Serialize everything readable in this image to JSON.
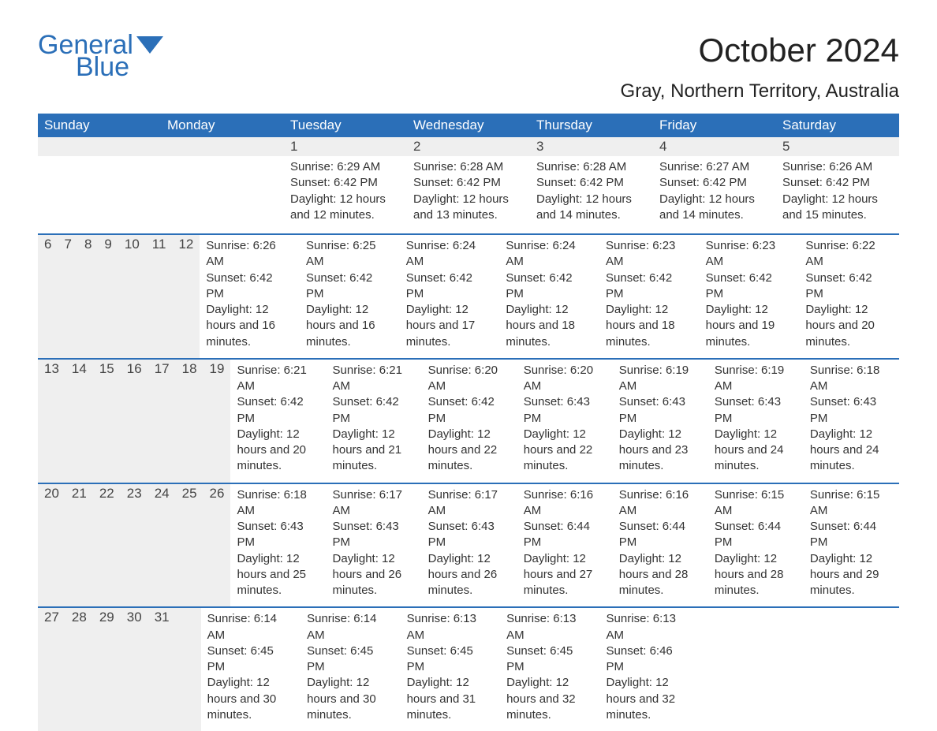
{
  "logo": {
    "general": "General",
    "blue": "Blue"
  },
  "title": "October 2024",
  "subtitle": "Gray, Northern Territory, Australia",
  "colors": {
    "header_bg": "#2b6fb8",
    "header_text": "#ffffff",
    "daynum_bg": "#efefef",
    "week_border": "#2b6fb8",
    "body_text": "#333333",
    "page_bg": "#ffffff"
  },
  "typography": {
    "title_fontsize": 42,
    "subtitle_fontsize": 24,
    "dayhead_fontsize": 17,
    "daynum_fontsize": 17,
    "body_fontsize": 15
  },
  "day_headers": [
    "Sunday",
    "Monday",
    "Tuesday",
    "Wednesday",
    "Thursday",
    "Friday",
    "Saturday"
  ],
  "weeks": [
    [
      {
        "num": "",
        "sunrise": "",
        "sunset": "",
        "daylight": ""
      },
      {
        "num": "",
        "sunrise": "",
        "sunset": "",
        "daylight": ""
      },
      {
        "num": "1",
        "sunrise": "Sunrise: 6:29 AM",
        "sunset": "Sunset: 6:42 PM",
        "daylight": "Daylight: 12 hours and 12 minutes."
      },
      {
        "num": "2",
        "sunrise": "Sunrise: 6:28 AM",
        "sunset": "Sunset: 6:42 PM",
        "daylight": "Daylight: 12 hours and 13 minutes."
      },
      {
        "num": "3",
        "sunrise": "Sunrise: 6:28 AM",
        "sunset": "Sunset: 6:42 PM",
        "daylight": "Daylight: 12 hours and 14 minutes."
      },
      {
        "num": "4",
        "sunrise": "Sunrise: 6:27 AM",
        "sunset": "Sunset: 6:42 PM",
        "daylight": "Daylight: 12 hours and 14 minutes."
      },
      {
        "num": "5",
        "sunrise": "Sunrise: 6:26 AM",
        "sunset": "Sunset: 6:42 PM",
        "daylight": "Daylight: 12 hours and 15 minutes."
      }
    ],
    [
      {
        "num": "6",
        "sunrise": "Sunrise: 6:26 AM",
        "sunset": "Sunset: 6:42 PM",
        "daylight": "Daylight: 12 hours and 16 minutes."
      },
      {
        "num": "7",
        "sunrise": "Sunrise: 6:25 AM",
        "sunset": "Sunset: 6:42 PM",
        "daylight": "Daylight: 12 hours and 16 minutes."
      },
      {
        "num": "8",
        "sunrise": "Sunrise: 6:24 AM",
        "sunset": "Sunset: 6:42 PM",
        "daylight": "Daylight: 12 hours and 17 minutes."
      },
      {
        "num": "9",
        "sunrise": "Sunrise: 6:24 AM",
        "sunset": "Sunset: 6:42 PM",
        "daylight": "Daylight: 12 hours and 18 minutes."
      },
      {
        "num": "10",
        "sunrise": "Sunrise: 6:23 AM",
        "sunset": "Sunset: 6:42 PM",
        "daylight": "Daylight: 12 hours and 18 minutes."
      },
      {
        "num": "11",
        "sunrise": "Sunrise: 6:23 AM",
        "sunset": "Sunset: 6:42 PM",
        "daylight": "Daylight: 12 hours and 19 minutes."
      },
      {
        "num": "12",
        "sunrise": "Sunrise: 6:22 AM",
        "sunset": "Sunset: 6:42 PM",
        "daylight": "Daylight: 12 hours and 20 minutes."
      }
    ],
    [
      {
        "num": "13",
        "sunrise": "Sunrise: 6:21 AM",
        "sunset": "Sunset: 6:42 PM",
        "daylight": "Daylight: 12 hours and 20 minutes."
      },
      {
        "num": "14",
        "sunrise": "Sunrise: 6:21 AM",
        "sunset": "Sunset: 6:42 PM",
        "daylight": "Daylight: 12 hours and 21 minutes."
      },
      {
        "num": "15",
        "sunrise": "Sunrise: 6:20 AM",
        "sunset": "Sunset: 6:42 PM",
        "daylight": "Daylight: 12 hours and 22 minutes."
      },
      {
        "num": "16",
        "sunrise": "Sunrise: 6:20 AM",
        "sunset": "Sunset: 6:43 PM",
        "daylight": "Daylight: 12 hours and 22 minutes."
      },
      {
        "num": "17",
        "sunrise": "Sunrise: 6:19 AM",
        "sunset": "Sunset: 6:43 PM",
        "daylight": "Daylight: 12 hours and 23 minutes."
      },
      {
        "num": "18",
        "sunrise": "Sunrise: 6:19 AM",
        "sunset": "Sunset: 6:43 PM",
        "daylight": "Daylight: 12 hours and 24 minutes."
      },
      {
        "num": "19",
        "sunrise": "Sunrise: 6:18 AM",
        "sunset": "Sunset: 6:43 PM",
        "daylight": "Daylight: 12 hours and 24 minutes."
      }
    ],
    [
      {
        "num": "20",
        "sunrise": "Sunrise: 6:18 AM",
        "sunset": "Sunset: 6:43 PM",
        "daylight": "Daylight: 12 hours and 25 minutes."
      },
      {
        "num": "21",
        "sunrise": "Sunrise: 6:17 AM",
        "sunset": "Sunset: 6:43 PM",
        "daylight": "Daylight: 12 hours and 26 minutes."
      },
      {
        "num": "22",
        "sunrise": "Sunrise: 6:17 AM",
        "sunset": "Sunset: 6:43 PM",
        "daylight": "Daylight: 12 hours and 26 minutes."
      },
      {
        "num": "23",
        "sunrise": "Sunrise: 6:16 AM",
        "sunset": "Sunset: 6:44 PM",
        "daylight": "Daylight: 12 hours and 27 minutes."
      },
      {
        "num": "24",
        "sunrise": "Sunrise: 6:16 AM",
        "sunset": "Sunset: 6:44 PM",
        "daylight": "Daylight: 12 hours and 28 minutes."
      },
      {
        "num": "25",
        "sunrise": "Sunrise: 6:15 AM",
        "sunset": "Sunset: 6:44 PM",
        "daylight": "Daylight: 12 hours and 28 minutes."
      },
      {
        "num": "26",
        "sunrise": "Sunrise: 6:15 AM",
        "sunset": "Sunset: 6:44 PM",
        "daylight": "Daylight: 12 hours and 29 minutes."
      }
    ],
    [
      {
        "num": "27",
        "sunrise": "Sunrise: 6:14 AM",
        "sunset": "Sunset: 6:45 PM",
        "daylight": "Daylight: 12 hours and 30 minutes."
      },
      {
        "num": "28",
        "sunrise": "Sunrise: 6:14 AM",
        "sunset": "Sunset: 6:45 PM",
        "daylight": "Daylight: 12 hours and 30 minutes."
      },
      {
        "num": "29",
        "sunrise": "Sunrise: 6:13 AM",
        "sunset": "Sunset: 6:45 PM",
        "daylight": "Daylight: 12 hours and 31 minutes."
      },
      {
        "num": "30",
        "sunrise": "Sunrise: 6:13 AM",
        "sunset": "Sunset: 6:45 PM",
        "daylight": "Daylight: 12 hours and 32 minutes."
      },
      {
        "num": "31",
        "sunrise": "Sunrise: 6:13 AM",
        "sunset": "Sunset: 6:46 PM",
        "daylight": "Daylight: 12 hours and 32 minutes."
      },
      {
        "num": "",
        "sunrise": "",
        "sunset": "",
        "daylight": ""
      },
      {
        "num": "",
        "sunrise": "",
        "sunset": "",
        "daylight": ""
      }
    ]
  ]
}
